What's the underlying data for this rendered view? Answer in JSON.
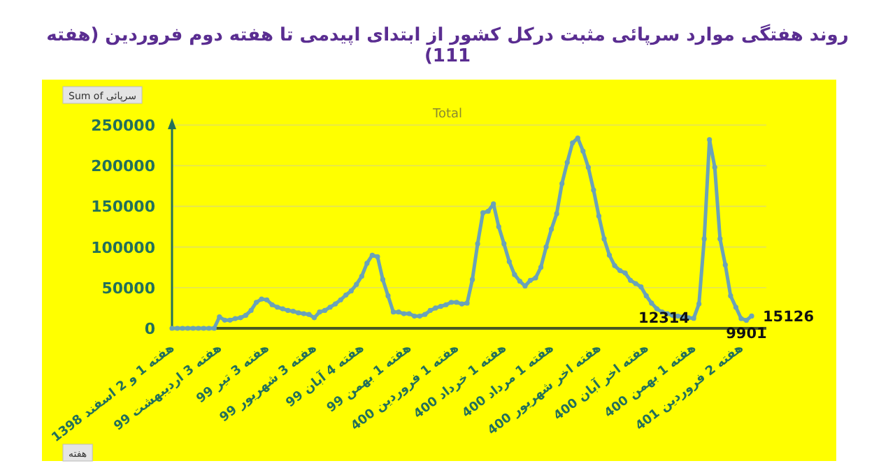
{
  "chart_data": {
    "type": "line",
    "title": "روند هفتگی موارد سرپائی مثبت درکل کشور از ابتدای اپیدمی تا هفته دوم فروردین (هفته 111)",
    "subtitle": "Total",
    "annotations": [
      "Sum of سرپائی",
      "هفته"
    ],
    "categories": [
      "هفته 1 و 2 اسفند 1398",
      null,
      null,
      null,
      null,
      null,
      null,
      null,
      null,
      "هفته 3 اردیبهشت 99",
      null,
      null,
      null,
      null,
      null,
      null,
      null,
      null,
      "هفته 3 تیر 99",
      null,
      null,
      null,
      null,
      null,
      null,
      null,
      null,
      "هفته 3 شهریور 99",
      null,
      null,
      null,
      null,
      null,
      null,
      null,
      null,
      "هفته 4 آبان 99",
      null,
      null,
      null,
      null,
      null,
      null,
      null,
      null,
      "هفته 1 بهمن 99",
      null,
      null,
      null,
      null,
      null,
      null,
      null,
      null,
      "هفته 1 فروردین 400",
      null,
      null,
      null,
      null,
      null,
      null,
      null,
      null,
      "هفته 1 خرداد 400",
      null,
      null,
      null,
      null,
      null,
      null,
      null,
      null,
      "هفته 1 مرداد 400",
      null,
      null,
      null,
      null,
      null,
      null,
      null,
      null,
      "هفته اخر شهریور 400",
      null,
      null,
      null,
      null,
      null,
      null,
      null,
      null,
      "هفته اخر آبان 400",
      null,
      null,
      null,
      null,
      null,
      null,
      null,
      null,
      "هفته 1 بهمن 400",
      null,
      null,
      null,
      null,
      null,
      null,
      null,
      null,
      "هفته 2 فروردین 401",
      null,
      null
    ],
    "values": [
      0,
      0,
      0,
      0,
      0,
      0,
      0,
      0,
      0,
      14000,
      10000,
      10000,
      12000,
      13000,
      16000,
      22000,
      32000,
      36000,
      35000,
      29000,
      26000,
      24000,
      22000,
      21000,
      19000,
      18000,
      17000,
      13000,
      20000,
      22000,
      26000,
      30000,
      35000,
      41000,
      46000,
      54000,
      64000,
      80000,
      90000,
      88000,
      60000,
      40000,
      20000,
      20000,
      18000,
      18000,
      15000,
      15000,
      17000,
      22000,
      25000,
      27000,
      29000,
      32000,
      32000,
      30000,
      31000,
      60000,
      104000,
      142000,
      144000,
      153000,
      125000,
      104000,
      82000,
      66000,
      58000,
      52000,
      59000,
      62000,
      75000,
      100000,
      122000,
      141000,
      178000,
      204000,
      228000,
      234000,
      218000,
      198000,
      170000,
      138000,
      110000,
      90000,
      77000,
      71000,
      68000,
      59000,
      55000,
      51000,
      40000,
      31000,
      24000,
      20000,
      18000,
      16000,
      15000,
      14000,
      13000,
      12314,
      30000,
      110000,
      232000,
      198000,
      110000,
      78000,
      40000,
      26000,
      12000,
      9901,
      15126
    ],
    "value_labels": [
      null,
      null,
      null,
      null,
      null,
      null,
      null,
      null,
      null,
      null,
      null,
      null,
      null,
      null,
      null,
      null,
      null,
      null,
      null,
      null,
      null,
      null,
      null,
      null,
      null,
      null,
      null,
      null,
      null,
      null,
      null,
      null,
      null,
      null,
      null,
      null,
      null,
      null,
      null,
      null,
      null,
      null,
      null,
      null,
      null,
      null,
      null,
      null,
      null,
      null,
      null,
      null,
      null,
      null,
      null,
      null,
      null,
      null,
      null,
      null,
      null,
      null,
      null,
      null,
      null,
      null,
      null,
      null,
      null,
      null,
      null,
      null,
      null,
      null,
      null,
      null,
      null,
      null,
      null,
      null,
      null,
      null,
      null,
      null,
      null,
      null,
      null,
      null,
      null,
      null,
      null,
      null,
      null,
      null,
      null,
      null,
      null,
      null,
      null,
      "12314",
      null,
      null,
      null,
      null,
      null,
      null,
      null,
      null,
      null,
      "9901",
      "15126"
    ],
    "color": "#6aa2b8",
    "marker": "circle",
    "ylim": [
      0,
      250000
    ],
    "yticks": [
      0,
      50000,
      100000,
      150000,
      200000,
      250000
    ],
    "grid": "y"
  }
}
